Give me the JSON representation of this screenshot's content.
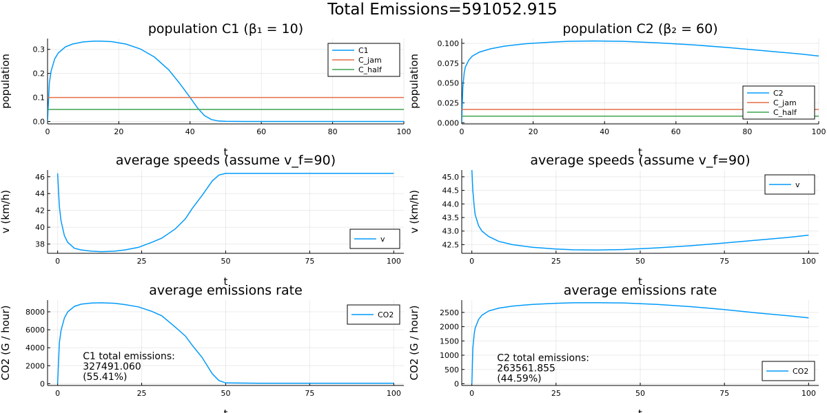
{
  "suptitle": "Total Emissions=591052.915",
  "colors": {
    "blue": "#009AFA",
    "red": "#E26F46",
    "green": "#3EA44E"
  },
  "chart_data": [
    {
      "id": "c1_pop",
      "type": "line",
      "title": "population C1 (β₁ = 10)",
      "xlabel": "t",
      "ylabel": "population",
      "xlim": [
        0,
        100
      ],
      "ylim": [
        -0.01,
        0.345
      ],
      "xticks": [
        0,
        20,
        40,
        60,
        80,
        100
      ],
      "yticks": [
        0,
        0.1,
        0.2,
        0.3
      ],
      "ytick_labels": [
        "0.0",
        "0.1",
        "0.2",
        "0.3"
      ],
      "legend": "top-right",
      "grid": true,
      "series": [
        {
          "name": "C1",
          "color": "#009AFA",
          "x": [
            0,
            0.5,
            1,
            2,
            3,
            5,
            7,
            10,
            13,
            15,
            18,
            22,
            26,
            30,
            34,
            37,
            40,
            42,
            44,
            46,
            48,
            50,
            55,
            60,
            100
          ],
          "y": [
            0.0,
            0.16,
            0.21,
            0.26,
            0.285,
            0.31,
            0.322,
            0.331,
            0.334,
            0.334,
            0.332,
            0.322,
            0.302,
            0.268,
            0.215,
            0.16,
            0.1,
            0.058,
            0.025,
            0.008,
            0.002,
            0.0005,
            0.0,
            0.0,
            0.0
          ]
        },
        {
          "name": "C_jam",
          "color": "#E26F46",
          "x": [
            0,
            100
          ],
          "y": [
            0.1,
            0.1
          ]
        },
        {
          "name": "C_half",
          "color": "#3EA44E",
          "x": [
            0,
            100
          ],
          "y": [
            0.05,
            0.05
          ]
        }
      ]
    },
    {
      "id": "c2_pop",
      "type": "line",
      "title": "population C2 (β₂ = 60)",
      "xlabel": "t",
      "ylabel": "population",
      "xlim": [
        0,
        100
      ],
      "ylim": [
        -0.0015,
        0.106
      ],
      "xticks": [
        0,
        20,
        40,
        60,
        80,
        100
      ],
      "yticks": [
        0,
        0.025,
        0.05,
        0.075,
        0.1
      ],
      "ytick_labels": [
        "0.000",
        "0.025",
        "0.050",
        "0.075",
        "0.100"
      ],
      "legend": "bottom-right",
      "grid": true,
      "series": [
        {
          "name": "C2",
          "color": "#009AFA",
          "x": [
            0,
            0.3,
            0.7,
            1,
            2,
            3,
            5,
            8,
            12,
            18,
            25,
            30,
            37,
            45,
            55,
            65,
            75,
            85,
            95,
            100
          ],
          "y": [
            0.0,
            0.045,
            0.063,
            0.07,
            0.079,
            0.084,
            0.089,
            0.093,
            0.0965,
            0.0995,
            0.1015,
            0.1025,
            0.103,
            0.1025,
            0.1005,
            0.098,
            0.0945,
            0.0905,
            0.0865,
            0.084
          ]
        },
        {
          "name": "C_jam",
          "color": "#E26F46",
          "x": [
            0,
            100
          ],
          "y": [
            0.0167,
            0.0167
          ]
        },
        {
          "name": "C_half",
          "color": "#3EA44E",
          "x": [
            0,
            100
          ],
          "y": [
            0.0083,
            0.0083
          ]
        }
      ]
    },
    {
      "id": "c1_speed",
      "type": "line",
      "title": "average speeds (assume v_f=90)",
      "xlabel": "t",
      "ylabel": "v (km/h)",
      "xlim": [
        -3,
        103
      ],
      "ylim": [
        36.9,
        46.8
      ],
      "xticks": [
        0,
        25,
        50,
        75,
        100
      ],
      "yticks": [
        38,
        40,
        42,
        44,
        46
      ],
      "ytick_labels": [
        "38",
        "40",
        "42",
        "44",
        "46"
      ],
      "legend": "bottom-right",
      "grid": true,
      "series": [
        {
          "name": "v",
          "color": "#009AFA",
          "x": [
            0,
            0.5,
            1,
            2,
            3,
            5,
            7,
            10,
            13,
            17,
            20,
            24,
            28,
            31,
            35,
            38,
            40,
            43,
            46,
            48,
            50,
            60,
            80,
            100
          ],
          "y": [
            46.4,
            42.5,
            40.8,
            39.0,
            38.2,
            37.5,
            37.3,
            37.15,
            37.1,
            37.15,
            37.3,
            37.6,
            38.2,
            38.7,
            39.8,
            41.0,
            42.2,
            43.8,
            45.5,
            46.2,
            46.4,
            46.4,
            46.4,
            46.4
          ]
        }
      ]
    },
    {
      "id": "c2_speed",
      "type": "line",
      "title": "average speeds (assume v_f=90)",
      "xlabel": "t",
      "ylabel": "v (km/h)",
      "xlim": [
        -3,
        103
      ],
      "ylim": [
        42.18,
        45.25
      ],
      "xticks": [
        0,
        25,
        50,
        75,
        100
      ],
      "yticks": [
        42.5,
        43,
        43.5,
        44,
        44.5,
        45
      ],
      "ytick_labels": [
        "42.5",
        "43.0",
        "43.5",
        "44.0",
        "44.5",
        "45.0"
      ],
      "legend": "top-right",
      "grid": true,
      "series": [
        {
          "name": "v",
          "color": "#009AFA",
          "x": [
            0,
            0.3,
            0.7,
            1,
            2,
            3,
            5,
            8,
            12,
            18,
            25,
            30,
            37,
            45,
            55,
            65,
            75,
            85,
            95,
            100
          ],
          "y": [
            45.25,
            44.5,
            43.9,
            43.6,
            43.2,
            43.0,
            42.8,
            42.62,
            42.5,
            42.4,
            42.34,
            42.31,
            42.3,
            42.32,
            42.38,
            42.46,
            42.56,
            42.67,
            42.78,
            42.85
          ]
        }
      ]
    },
    {
      "id": "c1_emis",
      "type": "line",
      "title": "average emissions rate",
      "xlabel": "t",
      "ylabel": "CO2 (G / hour)",
      "xlim": [
        -3,
        103
      ],
      "ylim": [
        -200,
        9300
      ],
      "xticks": [
        0,
        25,
        50,
        75,
        100
      ],
      "yticks": [
        0,
        2000,
        4000,
        6000,
        8000
      ],
      "ytick_labels": [
        "0",
        "2000",
        "4000",
        "6000",
        "8000"
      ],
      "legend": "top-right",
      "grid": true,
      "annotation": {
        "line1": "C1 total emissions:",
        "line2": "327491.060",
        "line3": "(55.41%)",
        "x": 7.5,
        "y": 2700
      },
      "series": [
        {
          "name": "CO2",
          "color": "#009AFA",
          "x": [
            0,
            0.5,
            1,
            2,
            3,
            5,
            7,
            10,
            13,
            17,
            20,
            24,
            28,
            31,
            35,
            38,
            40,
            43,
            46,
            48,
            50,
            60,
            80,
            100
          ],
          "y": [
            0,
            4500,
            5900,
            7300,
            8000,
            8600,
            8850,
            8980,
            9000,
            8950,
            8800,
            8550,
            8050,
            7550,
            6300,
            5300,
            4300,
            2900,
            1100,
            350,
            80,
            50,
            50,
            50
          ]
        }
      ]
    },
    {
      "id": "c2_emis",
      "type": "line",
      "title": "average emissions rate",
      "xlabel": "t",
      "ylabel": "CO2 (G / hour)",
      "xlim": [
        -3,
        103
      ],
      "ylim": [
        -60,
        2930
      ],
      "xticks": [
        0,
        25,
        50,
        75,
        100
      ],
      "yticks": [
        0,
        500,
        1000,
        1500,
        2000,
        2500
      ],
      "ytick_labels": [
        "0",
        "500",
        "1000",
        "1500",
        "2000",
        "2500"
      ],
      "legend": "bottom-right",
      "grid": true,
      "annotation": {
        "line1": "C2 total emissions:",
        "line2": "263561.855",
        "line3": "(44.59%)",
        "x": 7.5,
        "y": 800
      },
      "series": [
        {
          "name": "CO2",
          "color": "#009AFA",
          "x": [
            0,
            0.3,
            0.7,
            1,
            2,
            3,
            5,
            8,
            12,
            18,
            25,
            30,
            37,
            45,
            55,
            65,
            75,
            85,
            95,
            100
          ],
          "y": [
            0,
            1250,
            1750,
            1950,
            2250,
            2400,
            2550,
            2650,
            2720,
            2780,
            2820,
            2835,
            2840,
            2830,
            2780,
            2700,
            2600,
            2480,
            2370,
            2310
          ]
        }
      ]
    }
  ]
}
